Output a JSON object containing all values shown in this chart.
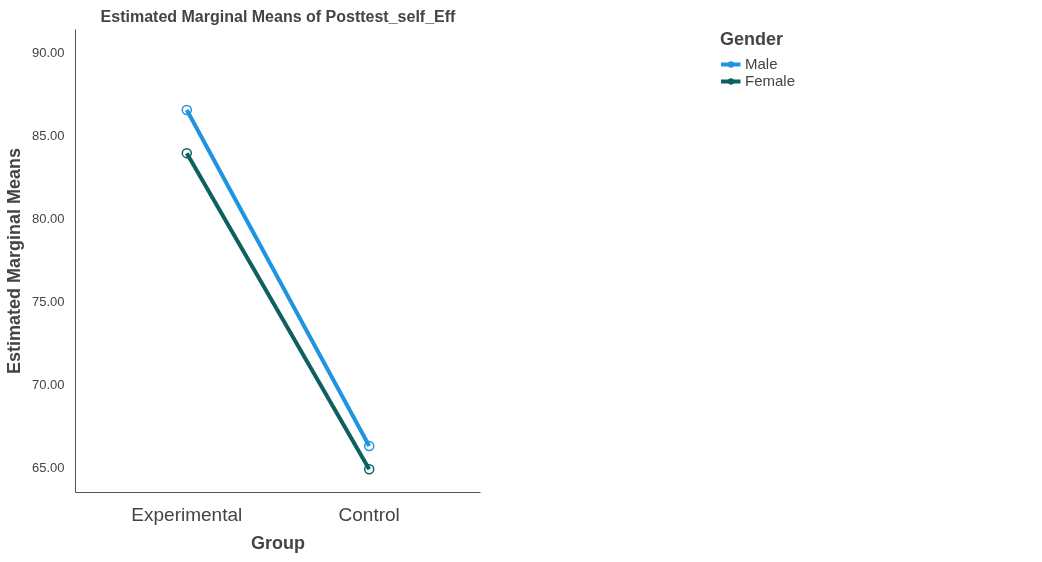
{
  "chart_data": {
    "type": "line",
    "title": "Estimated Marginal Means of Posttest_self_Eff",
    "xlabel": "Group",
    "ylabel": "Estimated Marginal Means",
    "legend_title": "Gender",
    "categories": [
      "Experimental",
      "Control"
    ],
    "series": [
      {
        "name": "Male",
        "color": "#1f94e0",
        "values": [
          86.55,
          66.3
        ]
      },
      {
        "name": "Female",
        "color": "#0e5f5f",
        "values": [
          83.95,
          64.9
        ]
      }
    ],
    "ylim": [
      63.5,
      91.4
    ],
    "yticks": [
      {
        "value": 65,
        "label": "65.00"
      },
      {
        "value": 70,
        "label": "70.00"
      },
      {
        "value": 75,
        "label": "75.00"
      },
      {
        "value": 80,
        "label": "80.00"
      },
      {
        "value": 85,
        "label": "85.00"
      },
      {
        "value": 90,
        "label": "90.00"
      }
    ],
    "grid": false,
    "legend": "top right",
    "marker": "circle",
    "line_style": "solid"
  }
}
